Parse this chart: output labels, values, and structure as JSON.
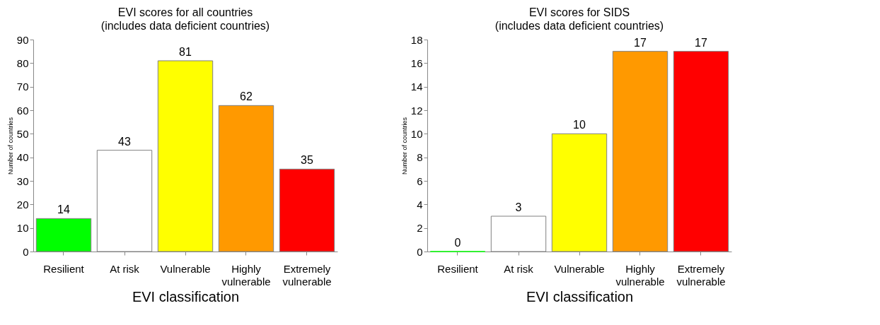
{
  "chart_data": [
    {
      "type": "bar",
      "title": "EVI scores for all countries",
      "subtitle": "(includes data deficient countries)",
      "xlabel": "EVI classification",
      "ylabel": "Number of countries",
      "categories": [
        "Resilient",
        "At risk",
        "Vulnerable",
        "Highly vulnerable",
        "Extremely vulnerable"
      ],
      "values": [
        14,
        43,
        81,
        62,
        35
      ],
      "colors": [
        "#00ff00",
        "#ffffff",
        "#ffff00",
        "#ff9900",
        "#ff0000"
      ],
      "ylim": [
        0,
        90
      ],
      "yticks": [
        0,
        10,
        20,
        30,
        40,
        50,
        60,
        70,
        80,
        90
      ],
      "grid": false,
      "data_labels": true
    },
    {
      "type": "bar",
      "title": "EVI scores for SIDS",
      "subtitle": "(includes data deficient countries)",
      "xlabel": "EVI classification",
      "ylabel": "Number of countries",
      "categories": [
        "Resilient",
        "At risk",
        "Vulnerable",
        "Highly vulnerable",
        "Extremely vulnerable"
      ],
      "values": [
        0,
        3,
        10,
        17,
        17
      ],
      "colors": [
        "#00ff00",
        "#ffffff",
        "#ffff00",
        "#ff9900",
        "#ff0000"
      ],
      "ylim": [
        0,
        18
      ],
      "yticks": [
        0,
        2,
        4,
        6,
        8,
        10,
        12,
        14,
        16,
        18
      ],
      "grid": false,
      "data_labels": true
    }
  ]
}
